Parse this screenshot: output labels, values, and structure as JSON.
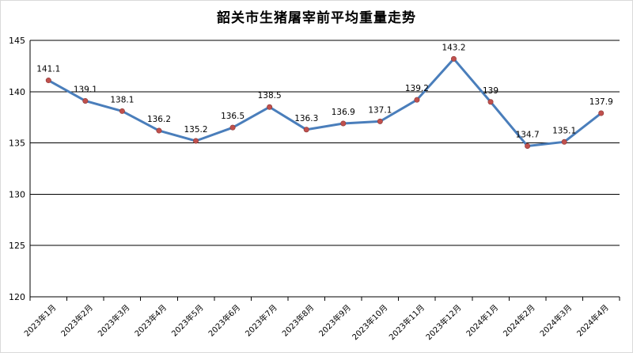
{
  "chart_data": {
    "type": "line",
    "title": "韶关市生猪屠宰前平均重量走势",
    "xlabel": "",
    "ylabel": "",
    "ylim": [
      120,
      145
    ],
    "yticks": [
      120,
      125,
      130,
      135,
      140,
      145
    ],
    "grid": true,
    "legend": "none",
    "categories": [
      "2023年1月",
      "2023年2月",
      "2023年3月",
      "2023年4月",
      "2023年5月",
      "2023年6月",
      "2023年7月",
      "2023年8月",
      "2023年9月",
      "2023年10月",
      "2023年11月",
      "2023年12月",
      "2024年1月",
      "2024年2月",
      "2024年3月",
      "2024年4月"
    ],
    "series": [
      {
        "values": [
          141.1,
          139.1,
          138.1,
          136.2,
          135.2,
          136.5,
          138.5,
          136.3,
          136.9,
          137.1,
          139.2,
          143.2,
          139,
          134.7,
          135.1,
          137.9
        ],
        "labels": [
          "141.1",
          "139.1",
          "138.1",
          "136.2",
          "135.2",
          "136.5",
          "138.5",
          "136.3",
          "136.9",
          "137.1",
          "139.2",
          "143.2",
          "139",
          "134.7",
          "135.1",
          "137.9"
        ],
        "line_color": "#4a7ebb",
        "marker_color": "#c0504d"
      }
    ]
  }
}
